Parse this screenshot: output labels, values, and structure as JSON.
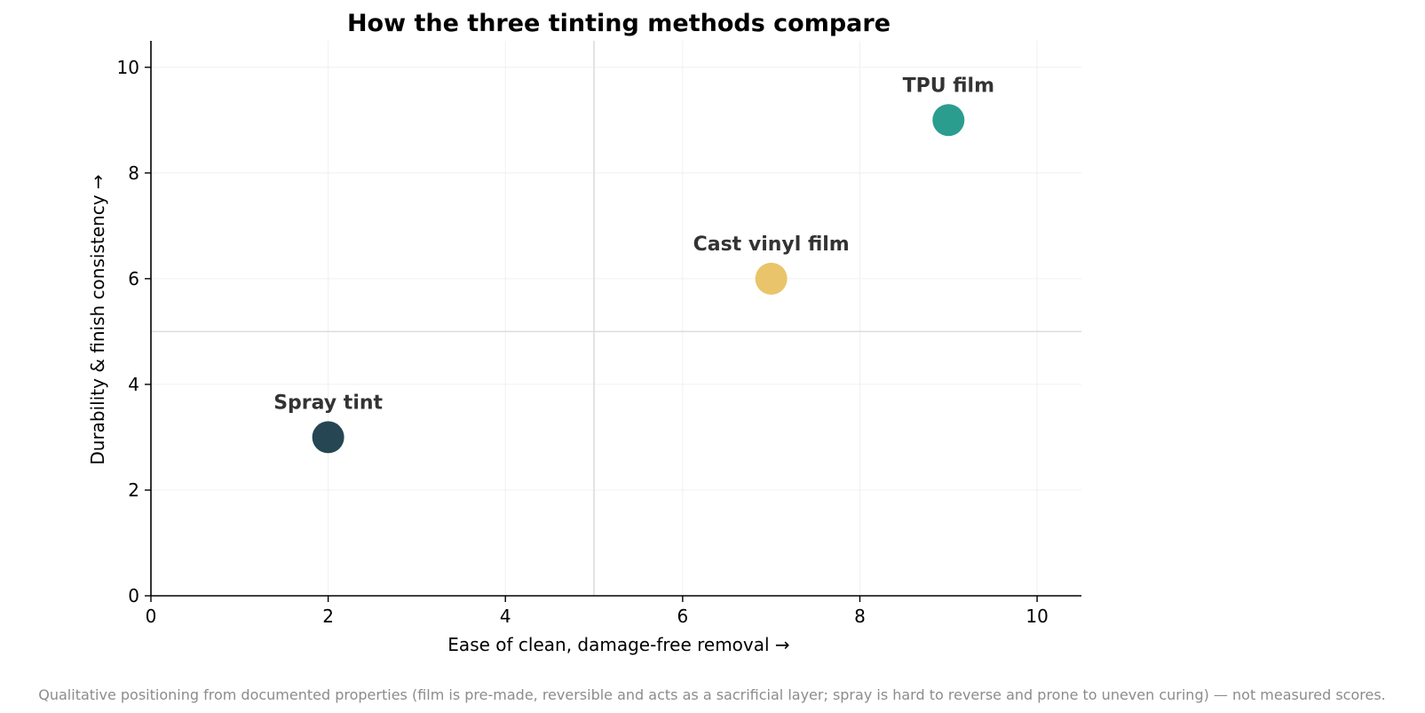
{
  "chart_data": {
    "type": "scatter",
    "title": "How the three tinting methods compare",
    "xlabel": "Ease of clean, damage-free removal  →",
    "ylabel": "Durability & finish consistency  →",
    "xlim": [
      0,
      10.5
    ],
    "ylim": [
      0,
      10.5
    ],
    "xticks": [
      0,
      2,
      4,
      6,
      8,
      10
    ],
    "yticks": [
      0,
      2,
      4,
      6,
      8,
      10
    ],
    "grid": true,
    "reference_lines": {
      "x": 5,
      "y": 5
    },
    "points": [
      {
        "label": "Spray tint",
        "x": 2,
        "y": 3,
        "color": "#264653"
      },
      {
        "label": "Cast vinyl film",
        "x": 7,
        "y": 6,
        "color": "#e9c46a"
      },
      {
        "label": "TPU film",
        "x": 9,
        "y": 9,
        "color": "#2a9d8f"
      }
    ]
  },
  "footnote": "Qualitative positioning from documented properties (film is pre-made, reversible and acts as a sacrificial layer; spray is hard to reverse and prone to uneven curing) — not measured scores."
}
